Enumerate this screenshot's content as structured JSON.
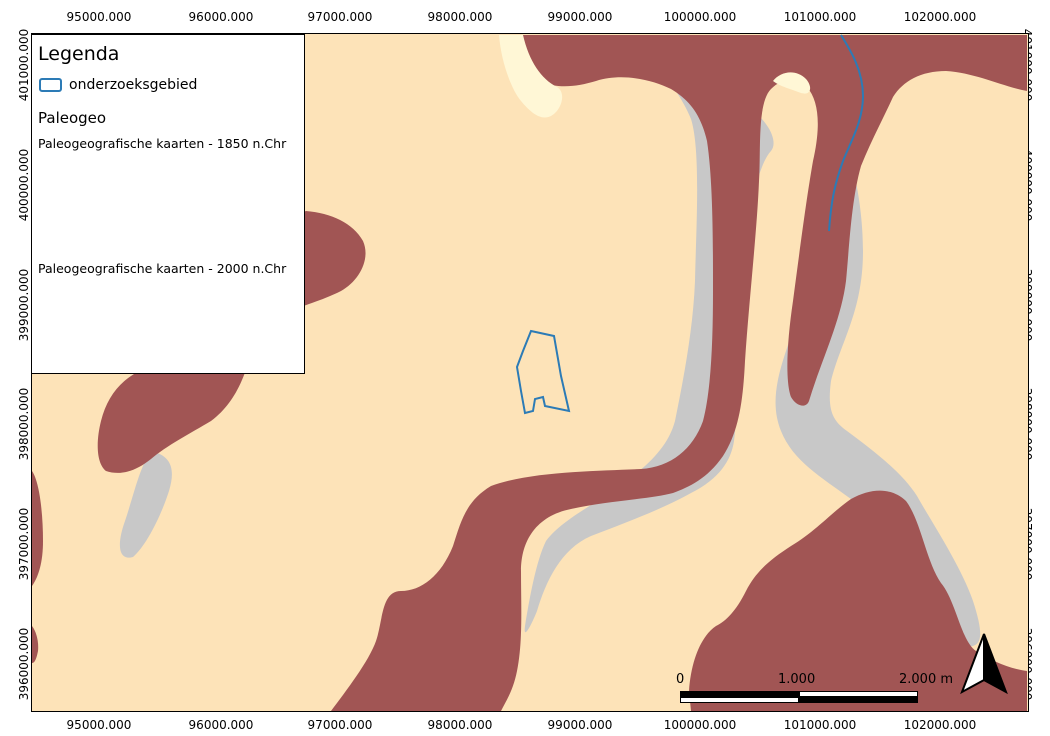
{
  "axes": {
    "x_ticks": [
      "95000.000",
      "96000.000",
      "97000.000",
      "98000.000",
      "99000.000",
      "100000.000",
      "101000.000",
      "102000.000"
    ],
    "y_ticks": [
      "401000.000",
      "400000.000",
      "399000.000",
      "398000.000",
      "397000.000",
      "396000.000"
    ]
  },
  "legend": {
    "title": "Legenda",
    "item_label": "onderzoeksgebied",
    "group_label": "Paleogeo",
    "sub1": "Paleogeografische kaarten - 1850 n.Chr",
    "sub2": "Paleogeografische kaarten - 2000 n.Chr"
  },
  "scalebar": {
    "label_0": "0",
    "label_mid": "1.000",
    "label_end": "2.000 m"
  },
  "colors": {
    "background": "#fde3b8",
    "brown": "#a15554",
    "grey": "#c8c8c8",
    "pale_yellow": "#fff7d6",
    "outline": "#2c7bb6"
  },
  "icons": {
    "north_arrow": "north-arrow-icon"
  }
}
